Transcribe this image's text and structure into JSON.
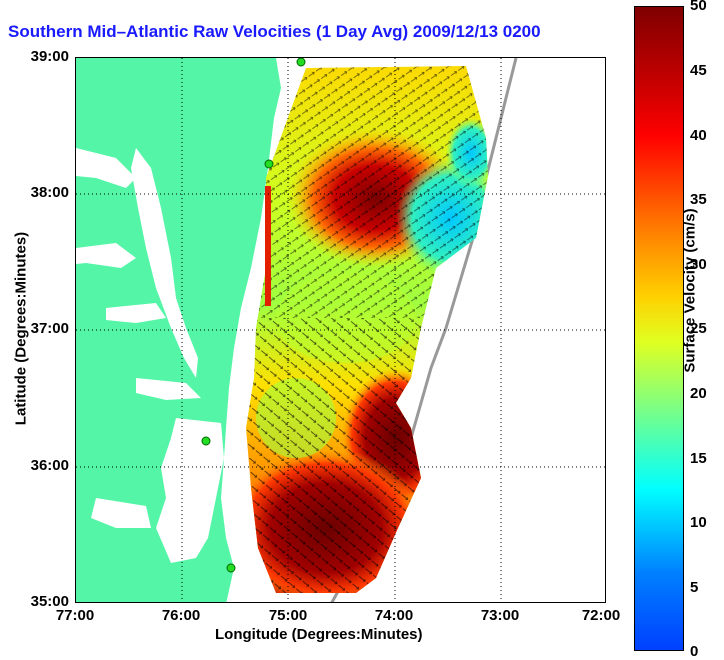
{
  "title": "Southern Mid-Atlantic Raw Velocities (1 Day Avg) 2009/12/13 0200 EST",
  "title_visible": "Southern Mid–Atlantic Raw Velocities (1 Day Avg) 2009/12/13 0200",
  "map": {
    "x_label": "Longitude (Degrees:Minutes)",
    "y_label": "Latitude (Degrees:Minutes)",
    "x_ticks": [
      "77:00",
      "76:00",
      "75:00",
      "74:00",
      "73:00",
      "72:00"
    ],
    "y_ticks": [
      "39:00",
      "38:00",
      "37:00",
      "36:00",
      "35:00"
    ],
    "lon_range": [
      -77,
      -72
    ],
    "lat_range": [
      35,
      39
    ],
    "grid": "dotted",
    "land_color": "#55f5a8",
    "field": "surface current velocity vectors over colored speed"
  },
  "colorbar": {
    "label": "Surface Velocity (cm/s)",
    "ticks": [
      "50",
      "45",
      "40",
      "35",
      "30",
      "25",
      "20",
      "15",
      "10",
      "5",
      "0"
    ],
    "range": [
      0,
      50
    ],
    "colormap": "jet"
  }
}
